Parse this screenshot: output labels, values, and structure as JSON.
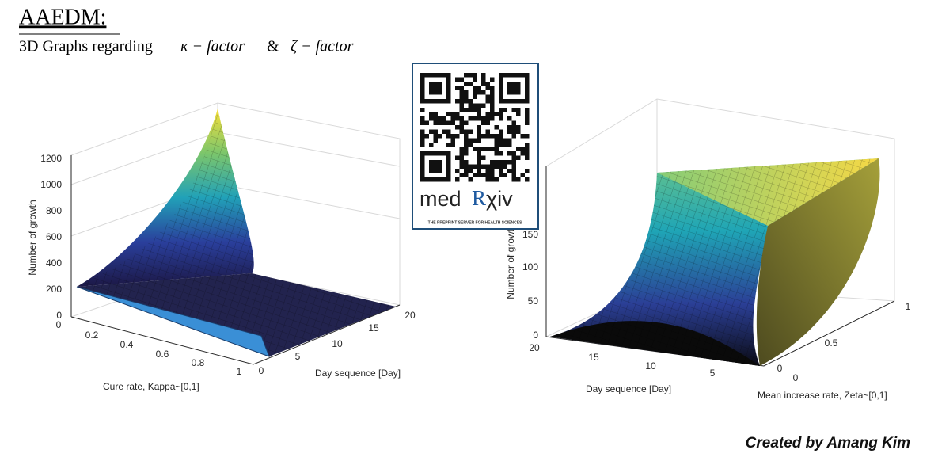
{
  "header": {
    "title": "AAEDM:",
    "subtitle": "3D Graphs regarding",
    "kappa": "κ − factor",
    "amp": "&",
    "zeta": "ζ − factor"
  },
  "badge": {
    "brand_left": "med",
    "brand_r": "R",
    "brand_right": "χiv",
    "tagline": "THE PREPRINT SERVER FOR HEALTH SCIENCES"
  },
  "left_plot": {
    "z_label": "Number of growth",
    "x_label": "Cure rate, Kappa~[0,1]",
    "y_label": "Day sequence [Day]",
    "z_ticks": [
      "0",
      "200",
      "400",
      "600",
      "800",
      "1000",
      "1200"
    ],
    "x_ticks": [
      "0",
      "0.2",
      "0.4",
      "0.6",
      "0.8",
      "1"
    ],
    "y_ticks": [
      "0",
      "5",
      "10",
      "15",
      "20"
    ]
  },
  "right_plot": {
    "z_label": "Number of growth",
    "x_label": "Day sequence [Day]",
    "y_label": "Mean increase rate, Zeta~[0,1]",
    "z_ticks": [
      "0",
      "50",
      "100",
      "150"
    ],
    "x_ticks": [
      "20",
      "15",
      "10",
      "5",
      "0"
    ],
    "y_ticks": [
      "0",
      "0.5",
      "1"
    ]
  },
  "footer": {
    "credit": "Created by Amang Kim"
  }
}
